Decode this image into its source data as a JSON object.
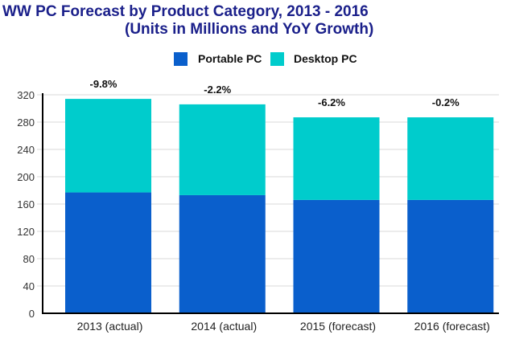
{
  "chart_data": {
    "type": "bar",
    "stacked": true,
    "title": "WW PC Forecast by Product Category, 2013 - 2016",
    "subtitle": "(Units in Millions and YoY Growth)",
    "xlabel": "",
    "ylabel": "",
    "categories": [
      "2013 (actual)",
      "2014 (actual)",
      "2015 (forecast)",
      "2016 (forecast)"
    ],
    "series": [
      {
        "name": "Portable PC",
        "color": "#0a5fcc",
        "values": [
          177,
          173,
          166,
          166
        ]
      },
      {
        "name": "Desktop PC",
        "color": "#00cccc",
        "values": [
          137,
          133,
          121,
          121
        ]
      }
    ],
    "annotations": [
      "-9.8%",
      "-2.2%",
      "-6.2%",
      "-0.2%"
    ],
    "ylim": [
      0,
      320
    ],
    "yticks": [
      0,
      40,
      80,
      120,
      160,
      200,
      240,
      280,
      320
    ],
    "grid": true,
    "legend_position": "top-center"
  },
  "colors": {
    "title": "#1a1f8a",
    "gridline": "#d9d9d9",
    "axis": "#000000",
    "tick_label": "#333333"
  }
}
